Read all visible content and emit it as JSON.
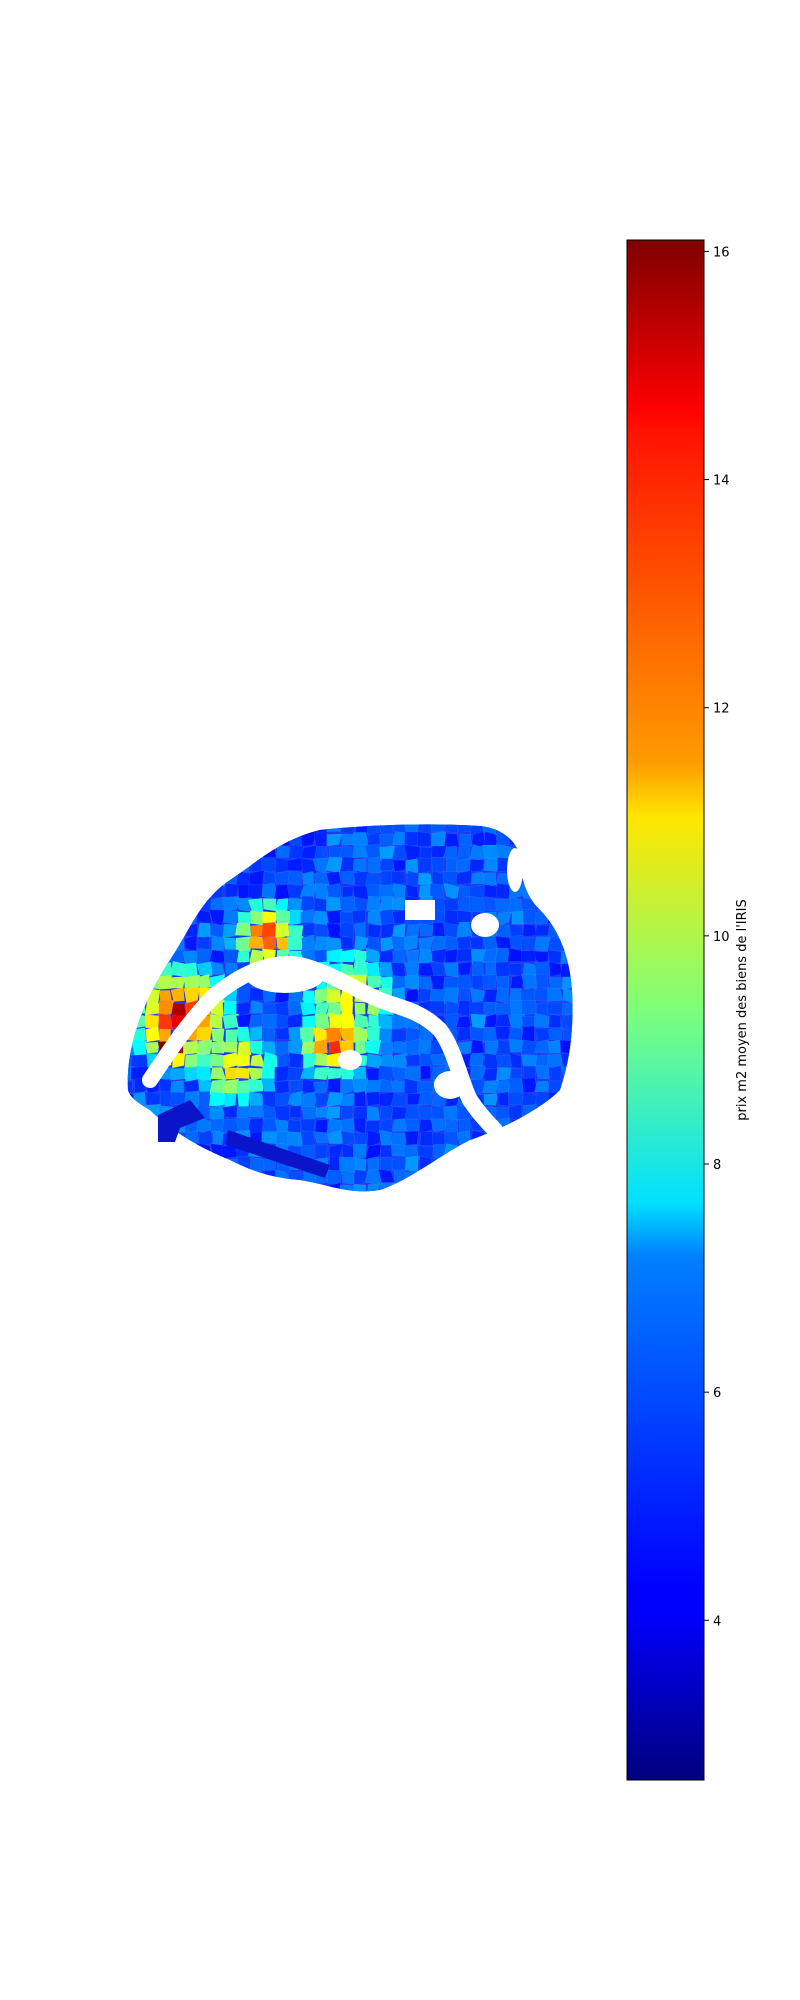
{
  "chart_data": {
    "type": "heatmap",
    "subtype": "choropleth",
    "region": "Paris IRIS",
    "colormap": "jet",
    "title": "",
    "colorbar": {
      "label": "prix m2 moyen des biens de l'IRIS",
      "min": 2.6,
      "max": 16.1,
      "ticks": [
        4,
        6,
        8,
        10,
        12,
        14,
        16
      ],
      "tick_labels": [
        "4",
        "6",
        "8",
        "10",
        "12",
        "14",
        "16"
      ],
      "orientation": "vertical",
      "placement": "right"
    },
    "axes_visible": false
  }
}
